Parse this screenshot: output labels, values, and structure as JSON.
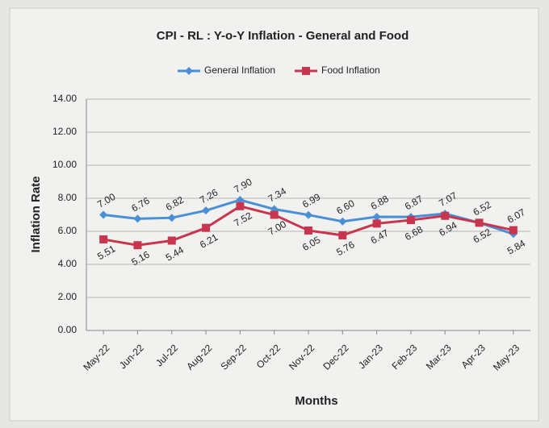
{
  "chart_data": {
    "type": "line",
    "title": "CPI - RL : Y-o-Y Inflation - General and Food",
    "x_label": "Months",
    "y_label": "Inflation Rate",
    "categories": [
      "May-22",
      "Jun-22",
      "Jul-22",
      "Aug-22",
      "Sep-22",
      "Oct-22",
      "Nov-22",
      "Dec-22",
      "Jan-23",
      "Feb-23",
      "Mar-23",
      "Apr-23",
      "May-23"
    ],
    "series": [
      {
        "name": "General Inflation",
        "color": "#4a8fd6",
        "marker": "diamond",
        "values": [
          7.0,
          6.76,
          6.82,
          7.26,
          7.9,
          7.34,
          6.99,
          6.6,
          6.88,
          6.87,
          7.07,
          6.52,
          5.84
        ],
        "value_labels": [
          "7.00",
          "6.76",
          "6.82",
          "7.26",
          "7.90",
          "7.34",
          "6.99",
          "6.60",
          "6.88",
          "6.87",
          "7.07",
          "6.52",
          "5.84"
        ]
      },
      {
        "name": "Food Inflation",
        "color": "#c8354f",
        "marker": "square",
        "values": [
          5.51,
          5.16,
          5.44,
          6.21,
          7.52,
          7.0,
          6.05,
          5.76,
          6.47,
          6.68,
          6.94,
          6.52,
          6.07
        ],
        "value_labels": [
          "5.51",
          "5.16",
          "5.44",
          "6.21",
          "7.52",
          "7.00",
          "6.05",
          "5.76",
          "6.47",
          "6.68",
          "6.94",
          "6.52",
          "6.07"
        ]
      }
    ],
    "ylim": [
      0,
      14
    ],
    "yticks": [
      {
        "value": 0,
        "label": "0.00"
      },
      {
        "value": 2,
        "label": "2.00"
      },
      {
        "value": 4,
        "label": "4.00"
      },
      {
        "value": 6,
        "label": "6.00"
      },
      {
        "value": 8,
        "label": "8.00"
      },
      {
        "value": 10,
        "label": "10.00"
      },
      {
        "value": 12,
        "label": "12.00"
      },
      {
        "value": 14,
        "label": "14.00"
      }
    ],
    "grid": true,
    "legend": "top"
  }
}
